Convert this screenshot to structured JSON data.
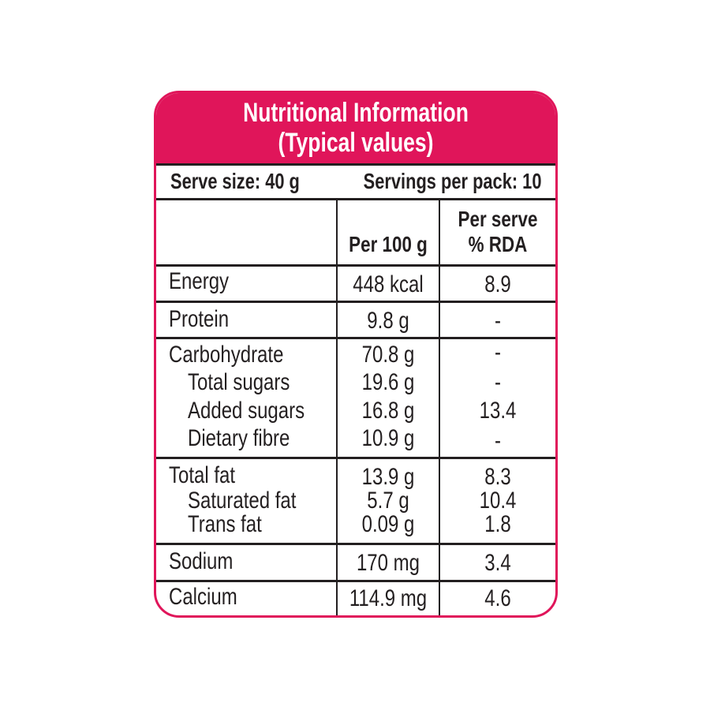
{
  "title_line1": "Nutritional Information",
  "title_line2": "(Typical values)",
  "serve_size": "Serve size: 40 g",
  "servings_per_pack": "Servings per pack: 10",
  "columns": {
    "per100": "Per 100 g",
    "per_serve_line1": "Per serve",
    "per_serve_line2": "% RDA"
  },
  "rows": {
    "energy": {
      "name": "Energy",
      "per100": "448 kcal",
      "rda": "8.9"
    },
    "protein": {
      "name": "Protein",
      "per100": "9.8 g",
      "rda": "-"
    },
    "carbohydrate": {
      "name": "Carbohydrate",
      "per100": "70.8 g",
      "rda": "-"
    },
    "total_sugars": {
      "name": "Total sugars",
      "per100": "19.6 g",
      "rda": "-"
    },
    "added_sugars": {
      "name": "Added sugars",
      "per100": "16.8 g",
      "rda": "13.4"
    },
    "dietary_fibre": {
      "name": "Dietary fibre",
      "per100": "10.9 g",
      "rda": "-"
    },
    "total_fat": {
      "name": "Total fat",
      "per100": "13.9 g",
      "rda": "8.3"
    },
    "saturated_fat": {
      "name": "Saturated fat",
      "per100": "5.7 g",
      "rda": "10.4"
    },
    "trans_fat": {
      "name": "Trans fat",
      "per100": "0.09 g",
      "rda": "1.8"
    },
    "sodium": {
      "name": "Sodium",
      "per100": "170 mg",
      "rda": "3.4"
    },
    "calcium": {
      "name": "Calcium",
      "per100": "114.9 mg",
      "rda": "4.6"
    }
  },
  "colors": {
    "accent": "#e0155a",
    "text": "#231f20"
  }
}
